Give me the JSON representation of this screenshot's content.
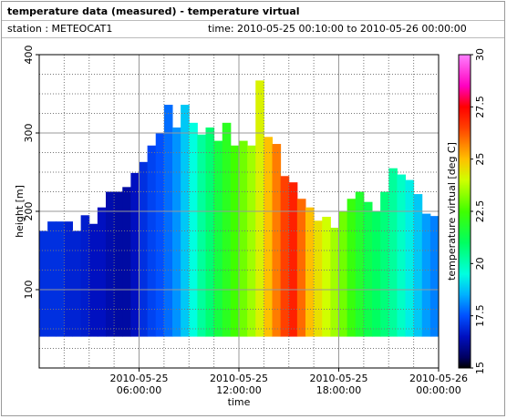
{
  "header": {
    "title": "temperature data (measured) - temperature virtual",
    "station": "station : METEOCAT1",
    "time_range": "time: 2010-05-25 00:10:00 to 2010-05-26 00:00:00"
  },
  "chart_data": {
    "type": "heatmap-columns",
    "xlabel": "time",
    "ylabel": "height [m]",
    "colorbar_label": "temperature virtual [deg C]",
    "x": [
      0,
      0.5,
      1,
      1.5,
      2,
      2.5,
      3,
      3.5,
      4,
      4.5,
      5,
      5.5,
      6,
      6.5,
      7,
      7.5,
      8,
      8.5,
      9,
      9.5,
      10,
      10.5,
      11,
      11.5,
      12,
      12.5,
      13,
      13.5,
      14,
      14.5,
      15,
      15.5,
      16,
      16.5,
      17,
      17.5,
      18,
      18.5,
      19,
      19.5,
      20,
      20.5,
      21,
      21.5,
      22,
      22.5,
      23,
      23.5
    ],
    "column_width": 0.5,
    "base_height": 40,
    "heights": [
      175,
      187,
      187,
      187,
      175,
      195,
      184,
      205,
      225,
      225,
      231,
      249,
      263,
      284,
      300,
      336,
      307,
      336,
      313,
      298,
      307,
      290,
      313,
      284,
      290,
      284,
      367,
      295,
      286,
      245,
      237,
      216,
      205,
      188,
      193,
      179,
      200,
      216,
      225,
      212,
      200,
      225,
      255,
      247,
      240,
      222,
      197,
      194
    ],
    "values": [
      17,
      17,
      17,
      16.8,
      16.8,
      16.7,
      16.5,
      16.5,
      16.3,
      16.2,
      16.2,
      16.5,
      17,
      17.3,
      17.5,
      17.8,
      18.2,
      18.8,
      19.5,
      20.3,
      20.8,
      21.5,
      22,
      22.5,
      23,
      23.5,
      24.2,
      25,
      25.8,
      26.5,
      27,
      26,
      25,
      24.5,
      24,
      23.5,
      23,
      22.3,
      21.8,
      21.3,
      21,
      20.7,
      20.3,
      19.8,
      19.3,
      18.8,
      18.3,
      18
    ],
    "xlim": [
      0,
      24
    ],
    "ylim": [
      0,
      400
    ],
    "xticks": [
      {
        "value": 6,
        "label": "2010-05-25 06:00:00"
      },
      {
        "value": 12,
        "label": "2010-05-25 12:00:00"
      },
      {
        "value": 18,
        "label": "2010-05-25 18:00:00"
      },
      {
        "value": 24,
        "label": "2010-05-26 00:00:00"
      }
    ],
    "yticks": [
      100,
      200,
      300,
      400
    ],
    "x_minor_ticks": [
      1.5,
      3,
      4.5,
      7.5,
      9,
      10.5,
      13.5,
      15,
      16.5,
      19.5,
      21,
      22.5
    ],
    "y_minor_ticks": [
      25,
      50,
      75,
      125,
      150,
      175,
      225,
      250,
      275,
      325,
      350,
      375
    ],
    "clim": [
      15,
      30
    ],
    "cticks": [
      15,
      17.5,
      20,
      22.5,
      25,
      27.5,
      30
    ],
    "colorscale": [
      [
        15,
        "#000000"
      ],
      [
        15.5,
        "#000060"
      ],
      [
        16.5,
        "#0010c0"
      ],
      [
        17.5,
        "#0050ff"
      ],
      [
        18.5,
        "#00b0ff"
      ],
      [
        19.5,
        "#00ffe0"
      ],
      [
        21,
        "#00ff60"
      ],
      [
        22.5,
        "#40ff00"
      ],
      [
        24,
        "#d0ff00"
      ],
      [
        25,
        "#ffc000"
      ],
      [
        26.5,
        "#ff4000"
      ],
      [
        27.5,
        "#ff0000"
      ],
      [
        28.5,
        "#ff00c0"
      ],
      [
        30,
        "#ff80ff"
      ]
    ],
    "grid": true
  }
}
